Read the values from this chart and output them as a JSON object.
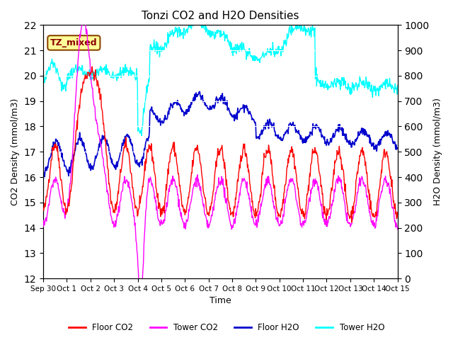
{
  "title": "Tonzi CO2 and H2O Densities",
  "xlabel": "Time",
  "ylabel_left": "CO2 Density (mmol/m3)",
  "ylabel_right": "H2O Density (mmol/m3)",
  "annotation_text": "TZ_mixed",
  "annotation_color": "#8B0000",
  "annotation_bg": "#FFFF99",
  "annotation_border": "#8B4500",
  "ylim_left": [
    12.0,
    22.0
  ],
  "ylim_right": [
    0,
    1000
  ],
  "yticks_left": [
    12.0,
    13.0,
    14.0,
    15.0,
    16.0,
    17.0,
    18.0,
    19.0,
    20.0,
    21.0,
    22.0
  ],
  "yticks_right": [
    0,
    100,
    200,
    300,
    400,
    500,
    600,
    700,
    800,
    900,
    1000
  ],
  "colors": {
    "floor_co2": "#FF0000",
    "tower_co2": "#FF00FF",
    "floor_h2o": "#0000CD",
    "tower_h2o": "#00FFFF"
  },
  "bg_color": "#E8E8E8",
  "legend_labels": [
    "Floor CO2",
    "Tower CO2",
    "Floor H2O",
    "Tower H2O"
  ],
  "n_days": 16,
  "seed": 42,
  "xtick_labels": [
    "Sep 30",
    "Oct 1",
    "Oct 2",
    "Oct 3",
    "Oct 4",
    "Oct 5",
    "Oct 6",
    "Oct 7",
    "Oct 8",
    "Oct 9",
    "Oct 10",
    "Oct 11",
    "Oct 12",
    "Oct 13",
    "Oct 14",
    "Oct 15"
  ],
  "xtick_positions": [
    0,
    1,
    2,
    3,
    4,
    5,
    6,
    7,
    8,
    9,
    10,
    11,
    12,
    13,
    14,
    15
  ]
}
